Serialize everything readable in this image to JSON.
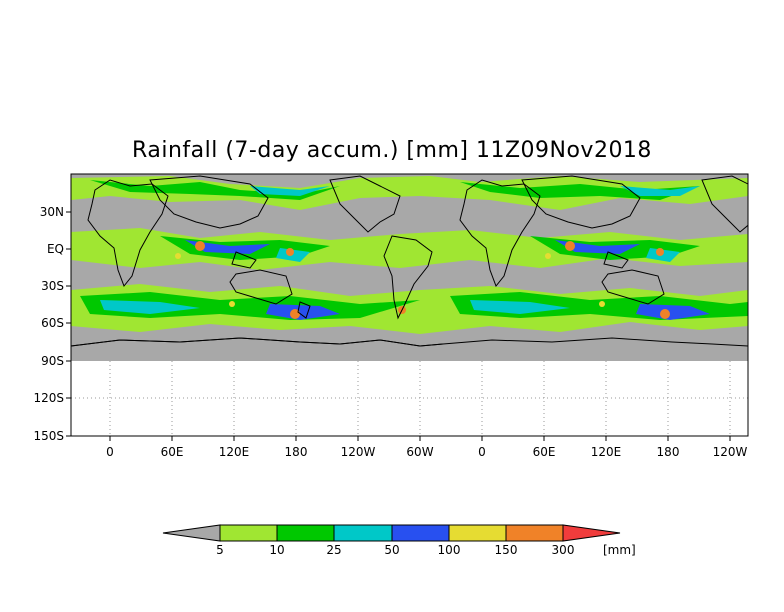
{
  "title": "Rainfall (7-day accum.) [mm] 11Z09Nov2018",
  "axes": {
    "y_ticks": [
      "30N",
      "EQ",
      "30S",
      "60S",
      "90S",
      "120S",
      "150S"
    ],
    "x_ticks": [
      "0",
      "60E",
      "120E",
      "180",
      "120W",
      "60W",
      "0",
      "60E",
      "120E",
      "180",
      "120W"
    ]
  },
  "colorbar": {
    "unit": "[mm]",
    "thresholds": [
      "5",
      "10",
      "25",
      "50",
      "100",
      "150",
      "300"
    ],
    "colors": [
      "#a8a8a8",
      "#a0e632",
      "#00c800",
      "#00c8c8",
      "#2850f0",
      "#e6dc32",
      "#f08228",
      "#f03c3c"
    ]
  },
  "map_colors": {
    "background_dry": "#a8a8a8",
    "coast": "#000000"
  }
}
